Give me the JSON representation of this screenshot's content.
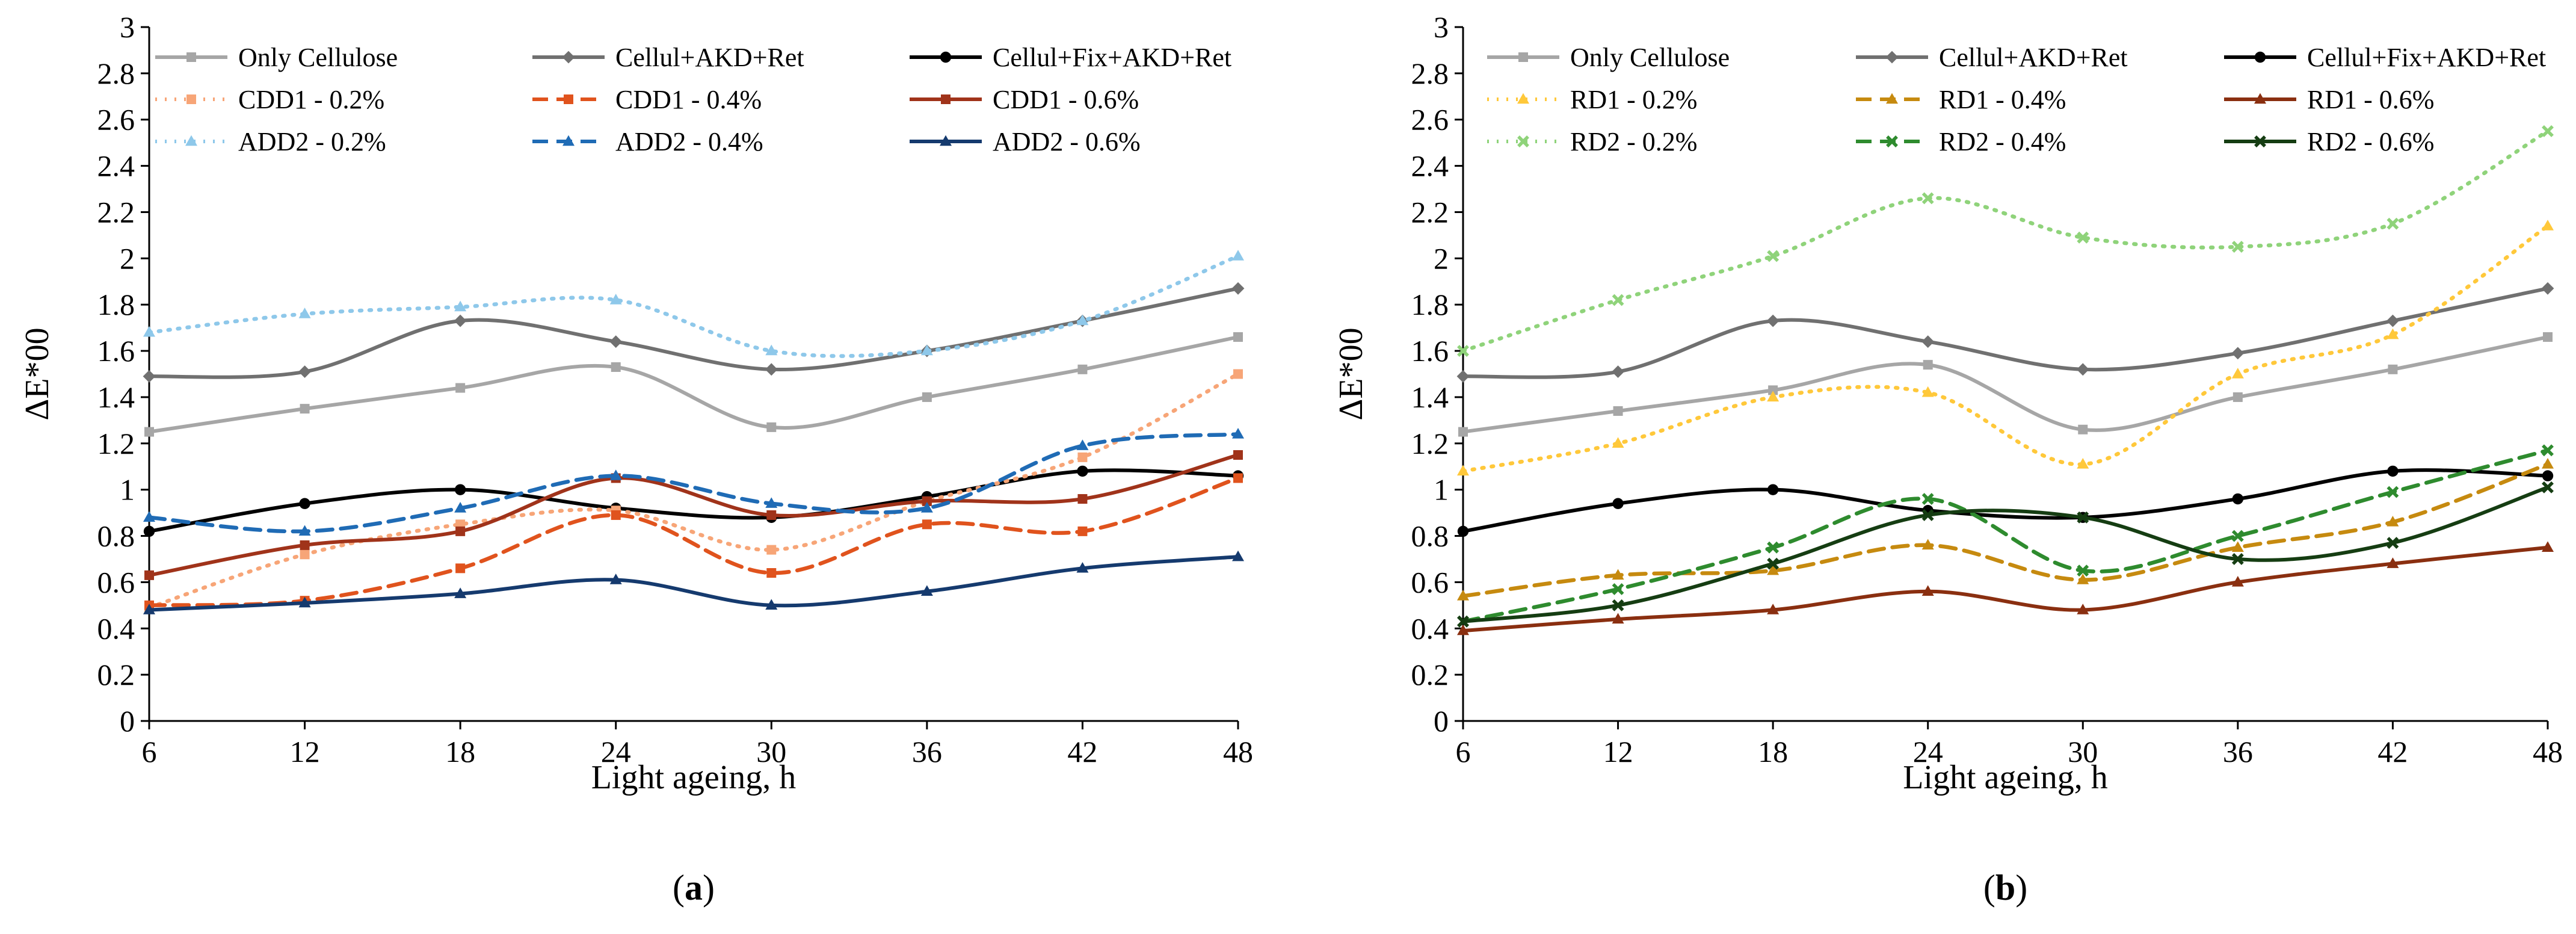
{
  "chart_data": [
    {
      "type": "line",
      "panel_label": "(a)",
      "panel_letter": "a",
      "xlabel": "Light ageing, h",
      "ylabel": "ΔE*00",
      "x": [
        6,
        12,
        18,
        24,
        30,
        36,
        42,
        48
      ],
      "ylim": [
        0,
        3
      ],
      "yticks": [
        "0",
        "0.2",
        "0.4",
        "0.6",
        "0.8",
        "1",
        "1.2",
        "1.4",
        "1.6",
        "1.8",
        "2",
        "2.2",
        "2.4",
        "2.6",
        "2.8",
        "3"
      ],
      "legend_position": "top",
      "grid": false,
      "series": [
        {
          "name": "Only Cellulose",
          "color": "#a6a6a6",
          "dash": "solid",
          "marker": "square",
          "values": [
            1.25,
            1.35,
            1.44,
            1.53,
            1.27,
            1.4,
            1.52,
            1.66
          ]
        },
        {
          "name": "Cellul+AKD+Ret",
          "color": "#707070",
          "dash": "solid",
          "marker": "diamond",
          "values": [
            1.49,
            1.51,
            1.73,
            1.64,
            1.52,
            1.6,
            1.73,
            1.87
          ]
        },
        {
          "name": "Cellul+Fix+AKD+Ret",
          "color": "#000000",
          "dash": "solid",
          "marker": "circle",
          "values": [
            0.82,
            0.94,
            1.0,
            0.92,
            0.88,
            0.97,
            1.08,
            1.06
          ]
        },
        {
          "name": "CDD1 - 0.2%",
          "color": "#f7a577",
          "dash": "dot",
          "marker": "square",
          "values": [
            0.49,
            0.72,
            0.85,
            0.91,
            0.74,
            0.95,
            1.14,
            1.5
          ]
        },
        {
          "name": "CDD1 - 0.4%",
          "color": "#e0531d",
          "dash": "dash",
          "marker": "square",
          "values": [
            0.5,
            0.52,
            0.66,
            0.89,
            0.64,
            0.85,
            0.82,
            1.05
          ]
        },
        {
          "name": "CDD1 - 0.6%",
          "color": "#a0331a",
          "dash": "solid",
          "marker": "square",
          "values": [
            0.63,
            0.76,
            0.82,
            1.05,
            0.89,
            0.95,
            0.96,
            1.15
          ]
        },
        {
          "name": "ADD2 - 0.2%",
          "color": "#8ec8ea",
          "dash": "dot",
          "marker": "triangle",
          "values": [
            1.68,
            1.76,
            1.79,
            1.82,
            1.6,
            1.6,
            1.73,
            2.01
          ]
        },
        {
          "name": "ADD2 - 0.4%",
          "color": "#1f6bb5",
          "dash": "dash",
          "marker": "triangle",
          "values": [
            0.88,
            0.82,
            0.92,
            1.06,
            0.94,
            0.92,
            1.19,
            1.24
          ]
        },
        {
          "name": "ADD2 - 0.6%",
          "color": "#153a6e",
          "dash": "solid",
          "marker": "triangle",
          "values": [
            0.48,
            0.51,
            0.55,
            0.61,
            0.5,
            0.56,
            0.66,
            0.71
          ]
        }
      ]
    },
    {
      "type": "line",
      "panel_label": "(b)",
      "panel_letter": "b",
      "xlabel": "Light ageing, h",
      "ylabel": "ΔE*00",
      "x": [
        6,
        12,
        18,
        24,
        30,
        36,
        42,
        48
      ],
      "ylim": [
        0,
        3
      ],
      "yticks": [
        "0",
        "0.2",
        "0.4",
        "0.6",
        "0.8",
        "1",
        "1.2",
        "1.4",
        "1.6",
        "1.8",
        "2",
        "2.2",
        "2.4",
        "2.6",
        "2.8",
        "3"
      ],
      "legend_position": "top",
      "grid": false,
      "series": [
        {
          "name": "Only Cellulose",
          "color": "#a6a6a6",
          "dash": "solid",
          "marker": "square",
          "values": [
            1.25,
            1.34,
            1.43,
            1.54,
            1.26,
            1.4,
            1.52,
            1.66
          ]
        },
        {
          "name": "Cellul+AKD+Ret",
          "color": "#707070",
          "dash": "solid",
          "marker": "diamond",
          "values": [
            1.49,
            1.51,
            1.73,
            1.64,
            1.52,
            1.59,
            1.73,
            1.87
          ]
        },
        {
          "name": "Cellul+Fix+AKD+Ret",
          "color": "#000000",
          "dash": "solid",
          "marker": "circle",
          "values": [
            0.82,
            0.94,
            1.0,
            0.91,
            0.88,
            0.96,
            1.08,
            1.06
          ]
        },
        {
          "name": "RD1 - 0.2%",
          "color": "#ffc83a",
          "dash": "dot",
          "marker": "triangle",
          "values": [
            1.08,
            1.2,
            1.4,
            1.42,
            1.11,
            1.5,
            1.67,
            2.14
          ]
        },
        {
          "name": "RD1 - 0.4%",
          "color": "#c68a0f",
          "dash": "dash",
          "marker": "triangle",
          "values": [
            0.54,
            0.63,
            0.65,
            0.76,
            0.61,
            0.75,
            0.86,
            1.11
          ]
        },
        {
          "name": "RD1 - 0.6%",
          "color": "#8a2f10",
          "dash": "solid",
          "marker": "triangle",
          "values": [
            0.39,
            0.44,
            0.48,
            0.56,
            0.48,
            0.6,
            0.68,
            0.75
          ]
        },
        {
          "name": "RD2 - 0.2%",
          "color": "#8fd37a",
          "dash": "dot",
          "marker": "x",
          "values": [
            1.6,
            1.82,
            2.01,
            2.26,
            2.09,
            2.05,
            2.15,
            2.55
          ]
        },
        {
          "name": "RD2 - 0.4%",
          "color": "#2e8b2e",
          "dash": "dash",
          "marker": "x",
          "values": [
            0.43,
            0.57,
            0.75,
            0.96,
            0.65,
            0.8,
            0.99,
            1.17
          ]
        },
        {
          "name": "RD2 - 0.6%",
          "color": "#153d12",
          "dash": "solid",
          "marker": "x",
          "values": [
            0.43,
            0.5,
            0.68,
            0.89,
            0.88,
            0.7,
            0.77,
            1.01
          ]
        }
      ]
    }
  ]
}
